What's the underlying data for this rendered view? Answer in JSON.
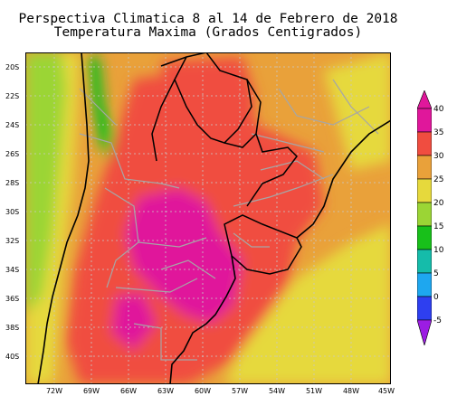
{
  "title": {
    "line1": "Perspectiva Climatica 8 al 14 de Febrero de 2018",
    "line2": "Temperatura Maxima (Grados Centigrados)"
  },
  "map": {
    "latitude_labels": [
      "20S",
      "22S",
      "24S",
      "26S",
      "28S",
      "30S",
      "32S",
      "34S",
      "36S",
      "38S",
      "40S"
    ],
    "longitude_labels": [
      "72W",
      "69W",
      "66W",
      "63W",
      "60W",
      "57W",
      "54W",
      "51W",
      "48W",
      "45W"
    ],
    "lon_range": [
      -74.5,
      -45
    ],
    "lat_range": [
      -41.5,
      -18.5
    ]
  },
  "colorbar": {
    "labels": [
      "40",
      "35",
      "30",
      "25",
      "20",
      "15",
      "10",
      "5",
      "0",
      "-5"
    ],
    "colors": [
      "#e0179b",
      "#f04d40",
      "#e9a13a",
      "#e6d93c",
      "#9bd535",
      "#18c01a",
      "#15bcaa",
      "#1ea7ef",
      "#2e3ff0",
      "#9c1ce3"
    ],
    "legend_placement": "right"
  },
  "colors": {
    "grid": "#c9c9c9",
    "borders": "#a6a6a6",
    "coast": "#000000"
  }
}
